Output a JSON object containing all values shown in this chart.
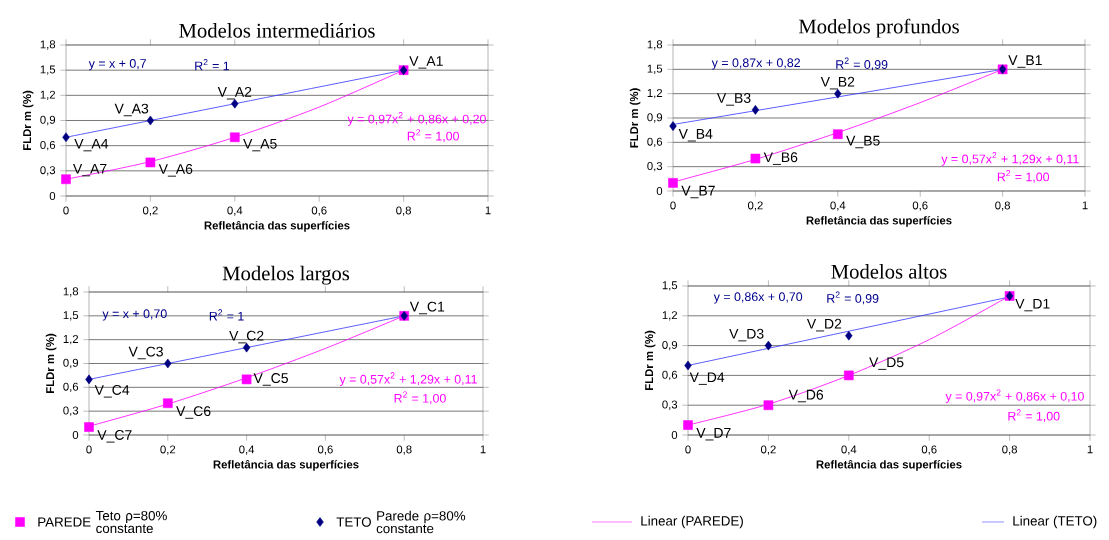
{
  "chart_data": [
    {
      "type": "scatter",
      "title": "Modelos intermediários",
      "xlabel": "Refletância das superfícies",
      "ylabel": "FLDr m (%)",
      "xlim": [
        0,
        1
      ],
      "ylim": [
        0,
        1.8
      ],
      "xticks": [
        0,
        {
          "value": 0.2,
          "label": "0,2"
        },
        {
          "value": 0.4,
          "label": "0,4"
        },
        {
          "value": 0.6,
          "label": "0,6"
        },
        {
          "value": 0.8,
          "label": "0,8"
        },
        1
      ],
      "yticks": [
        0,
        {
          "value": 0.3,
          "label": "0,3"
        },
        {
          "value": 0.6,
          "label": "0,6"
        },
        {
          "value": 0.9,
          "label": "0,9"
        },
        {
          "value": 1.2,
          "label": "1,2"
        },
        {
          "value": 1.5,
          "label": "1,5"
        },
        {
          "value": 1.8,
          "label": "1,8"
        }
      ],
      "grid": "y",
      "legend": "bottom",
      "series": [
        {
          "name": "PAREDE",
          "marker": "square",
          "color": "#ff00ff",
          "x": [
            0,
            0.2,
            0.4,
            0.8
          ],
          "values": [
            0.2,
            0.4,
            0.7,
            1.5
          ]
        },
        {
          "name": "TETO",
          "marker": "diamond",
          "color": "#000080",
          "x": [
            0,
            0.2,
            0.4,
            0.8
          ],
          "values": [
            0.7,
            0.9,
            1.1,
            1.5
          ]
        },
        {
          "name": "Linear (PAREDE)",
          "type": "line",
          "color": "#ff00ff",
          "x": [
            0,
            0.2,
            0.4,
            0.6,
            0.8
          ],
          "values": [
            0.2,
            0.41,
            0.7,
            1.06,
            1.5
          ]
        },
        {
          "name": "Linear (TETO)",
          "type": "line",
          "color": "#3333ff",
          "x": [
            0,
            0.8
          ],
          "values": [
            0.7,
            1.5
          ]
        }
      ],
      "annotations": [
        {
          "text": "V_A1",
          "x": 0.8,
          "y": 1.5
        },
        {
          "text": "V_A2",
          "x": 0.4,
          "y": 1.1
        },
        {
          "text": "V_A3",
          "x": 0.2,
          "y": 0.9
        },
        {
          "text": "V_A4",
          "x": 0,
          "y": 0.7
        },
        {
          "text": "V_A5",
          "x": 0.4,
          "y": 0.7
        },
        {
          "text": "V_A6",
          "x": 0.2,
          "y": 0.4
        },
        {
          "text": "V_A7",
          "x": 0,
          "y": 0.2
        },
        "y = x + 0,7",
        "R$^{2}$ = 1",
        "y = 0,97x$^{2}$ + 0,86x + 0,20",
        "R$^{2}$ = 1,00",
        "Teto ρ=80% constante",
        "Parede ρ=80% constante"
      ]
    },
    {
      "type": "scatter",
      "title": "Modelos profundos",
      "xlabel": "Refletância das superfícies",
      "ylabel": "FLDr m (%)",
      "xlim": [
        0,
        1
      ],
      "ylim": [
        0,
        1.8
      ],
      "xticks": [
        0,
        {
          "value": 0.2,
          "label": "0,2"
        },
        {
          "value": 0.4,
          "label": "0,4"
        },
        {
          "value": 0.6,
          "label": "0,6"
        },
        {
          "value": 0.8,
          "label": "0,8"
        },
        1
      ],
      "yticks": [
        0,
        {
          "value": 0.3,
          "label": "0,3"
        },
        {
          "value": 0.6,
          "label": "0,6"
        },
        {
          "value": 0.9,
          "label": "0,9"
        },
        {
          "value": 1.2,
          "label": "1,2"
        },
        {
          "value": 1.5,
          "label": "1,5"
        },
        {
          "value": 1.8,
          "label": "1,8"
        }
      ],
      "grid": "y",
      "series": [
        {
          "marker": "square",
          "color": "#ff00ff",
          "x": [
            0,
            0.2,
            0.4,
            0.8
          ],
          "values": [
            0.1,
            0.4,
            0.7,
            1.5
          ]
        },
        {
          "marker": "diamond",
          "color": "#000080",
          "x": [
            0,
            0.2,
            0.4,
            0.8
          ],
          "values": [
            0.8,
            1.0,
            1.2,
            1.5
          ]
        },
        {
          "type": "line",
          "color": "#ff00ff",
          "x": [
            0,
            0.2,
            0.4,
            0.6,
            0.8
          ],
          "values": [
            0.11,
            0.39,
            0.72,
            1.09,
            1.5
          ]
        },
        {
          "type": "line",
          "color": "#3333ff",
          "x": [
            0,
            0.8
          ],
          "values": [
            0.82,
            1.5
          ]
        }
      ],
      "annotations": [
        {
          "text": "V_B1",
          "x": 0.8,
          "y": 1.5
        },
        {
          "text": "V_B2",
          "x": 0.4,
          "y": 1.2
        },
        {
          "text": "V_B3",
          "x": 0.2,
          "y": 1.0
        },
        {
          "text": "V_B4",
          "x": 0,
          "y": 0.8
        },
        {
          "text": "V_B5",
          "x": 0.4,
          "y": 0.7
        },
        {
          "text": "V_B6",
          "x": 0.2,
          "y": 0.4
        },
        {
          "text": "V_B7",
          "x": 0,
          "y": 0.1
        },
        "y = 0,87x + 0,82",
        "R$^{2}$ = 0,99",
        "y = 0,57x$^{2}$ + 1,29x + 0,11",
        "R$^{2}$ = 1,00"
      ]
    },
    {
      "type": "scatter",
      "title": "Modelos largos",
      "xlabel": "Refletância das superfícies",
      "ylabel": "FLDr m (%)",
      "xlim": [
        0,
        1
      ],
      "ylim": [
        0,
        1.8
      ],
      "xticks": [
        0,
        {
          "value": 0.2,
          "label": "0,2"
        },
        {
          "value": 0.4,
          "label": "0,4"
        },
        {
          "value": 0.6,
          "label": "0,6"
        },
        {
          "value": 0.8,
          "label": "0,8"
        },
        1
      ],
      "yticks": [
        0,
        {
          "value": 0.3,
          "label": "0,3"
        },
        {
          "value": 0.6,
          "label": "0,6"
        },
        {
          "value": 0.9,
          "label": "0,9"
        },
        {
          "value": 1.2,
          "label": "1,2"
        },
        {
          "value": 1.5,
          "label": "1,5"
        },
        {
          "value": 1.8,
          "label": "1,8"
        }
      ],
      "grid": "y",
      "series": [
        {
          "marker": "square",
          "color": "#ff00ff",
          "x": [
            0,
            0.2,
            0.4,
            0.8
          ],
          "values": [
            0.1,
            0.4,
            0.7,
            1.5
          ]
        },
        {
          "marker": "diamond",
          "color": "#000080",
          "x": [
            0,
            0.2,
            0.4,
            0.8
          ],
          "values": [
            0.7,
            0.9,
            1.1,
            1.5
          ]
        },
        {
          "type": "line",
          "color": "#ff00ff",
          "x": [
            0,
            0.2,
            0.4,
            0.6,
            0.8
          ],
          "values": [
            0.11,
            0.39,
            0.72,
            1.09,
            1.5
          ]
        },
        {
          "type": "line",
          "color": "#3333ff",
          "x": [
            0,
            0.8
          ],
          "values": [
            0.7,
            1.5
          ]
        }
      ],
      "annotations": [
        {
          "text": "V_C1",
          "x": 0.8,
          "y": 1.5
        },
        {
          "text": "V_C2",
          "x": 0.4,
          "y": 1.1
        },
        {
          "text": "V_C3",
          "x": 0.2,
          "y": 0.9
        },
        {
          "text": "V_C4",
          "x": 0,
          "y": 0.7
        },
        {
          "text": "V_C5",
          "x": 0.4,
          "y": 0.7
        },
        {
          "text": "V_C6",
          "x": 0.2,
          "y": 0.4
        },
        {
          "text": "V_C7",
          "x": 0,
          "y": 0.1
        },
        "y = x + 0,70",
        "R$^{2}$ = 1",
        "y = 0,57x$^{2}$ + 1,29x + 0,11",
        "R$^{2}$ = 1,00"
      ]
    },
    {
      "type": "scatter",
      "title": "Modelos altos",
      "xlabel": "Refletância das superfícies",
      "ylabel": "FLDr m (%)",
      "xlim": [
        0,
        1
      ],
      "ylim": [
        0,
        1.5
      ],
      "xticks": [
        0,
        {
          "value": 0.2,
          "label": "0,2"
        },
        {
          "value": 0.4,
          "label": "0,4"
        },
        {
          "value": 0.6,
          "label": "0,6"
        },
        {
          "value": 0.8,
          "label": "0,8"
        },
        1
      ],
      "yticks": [
        0,
        {
          "value": 0.3,
          "label": "0,3"
        },
        {
          "value": 0.6,
          "label": "0,6"
        },
        {
          "value": 0.9,
          "label": "0,9"
        },
        {
          "value": 1.2,
          "label": "1,2"
        },
        {
          "value": 1.5,
          "label": "1,5"
        }
      ],
      "grid": "y",
      "series": [
        {
          "marker": "square",
          "color": "#ff00ff",
          "x": [
            0,
            0.2,
            0.4,
            0.8
          ],
          "values": [
            0.1,
            0.3,
            0.6,
            1.4
          ]
        },
        {
          "marker": "diamond",
          "color": "#000080",
          "x": [
            0,
            0.2,
            0.4,
            0.8
          ],
          "values": [
            0.7,
            0.9,
            1.0,
            1.4
          ]
        },
        {
          "type": "line",
          "color": "#ff00ff",
          "x": [
            0,
            0.2,
            0.4,
            0.6,
            0.8
          ],
          "values": [
            0.1,
            0.31,
            0.6,
            0.96,
            1.4
          ]
        },
        {
          "type": "line",
          "color": "#3333ff",
          "x": [
            0,
            0.8
          ],
          "values": [
            0.7,
            1.39
          ]
        }
      ],
      "annotations": [
        {
          "text": "V_D1",
          "x": 0.8,
          "y": 1.4
        },
        {
          "text": "V_D2",
          "x": 0.4,
          "y": 1.0
        },
        {
          "text": "V_D3",
          "x": 0.2,
          "y": 0.9
        },
        {
          "text": "V_D4",
          "x": 0,
          "y": 0.7
        },
        {
          "text": "V_D5",
          "x": 0.4,
          "y": 0.6
        },
        {
          "text": "V_D6",
          "x": 0.2,
          "y": 0.3
        },
        {
          "text": "V_D7",
          "x": 0,
          "y": 0.1
        },
        "y = 0,86x + 0,70",
        "R$^{2}$ = 0,99",
        "y = 0,97x$^{2}$ + 0,86x + 0,10",
        "R$^{2}$ = 1,00"
      ]
    }
  ]
}
